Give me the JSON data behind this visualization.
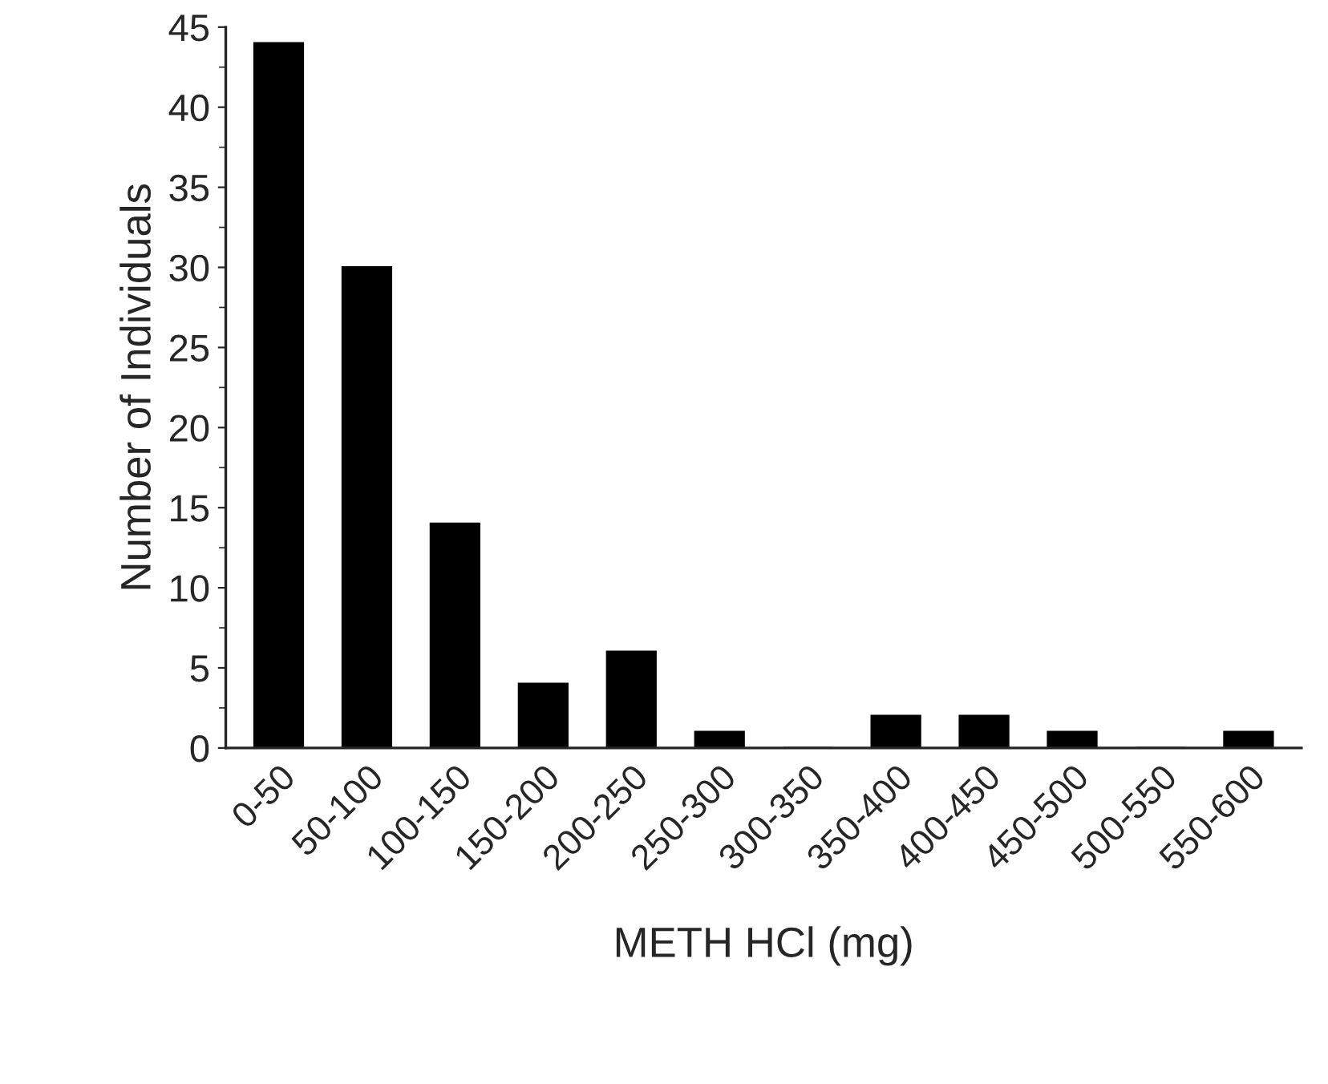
{
  "chart_data": {
    "type": "bar",
    "xlabel": "METH HCl (mg)",
    "ylabel": "Number of Individuals",
    "categories": [
      "0-50",
      "50-100",
      "100-150",
      "150-200",
      "200-250",
      "250-300",
      "300-350",
      "350-400",
      "400-450",
      "450-500",
      "500-550",
      "550-600"
    ],
    "values": [
      44,
      30,
      14,
      4,
      6,
      1,
      0,
      2,
      2,
      1,
      0,
      1
    ],
    "color": "#000000",
    "ylim": [
      0,
      45
    ],
    "yticks": [
      0,
      5,
      10,
      15,
      20,
      25,
      30,
      35,
      40,
      45
    ],
    "grid": false
  }
}
